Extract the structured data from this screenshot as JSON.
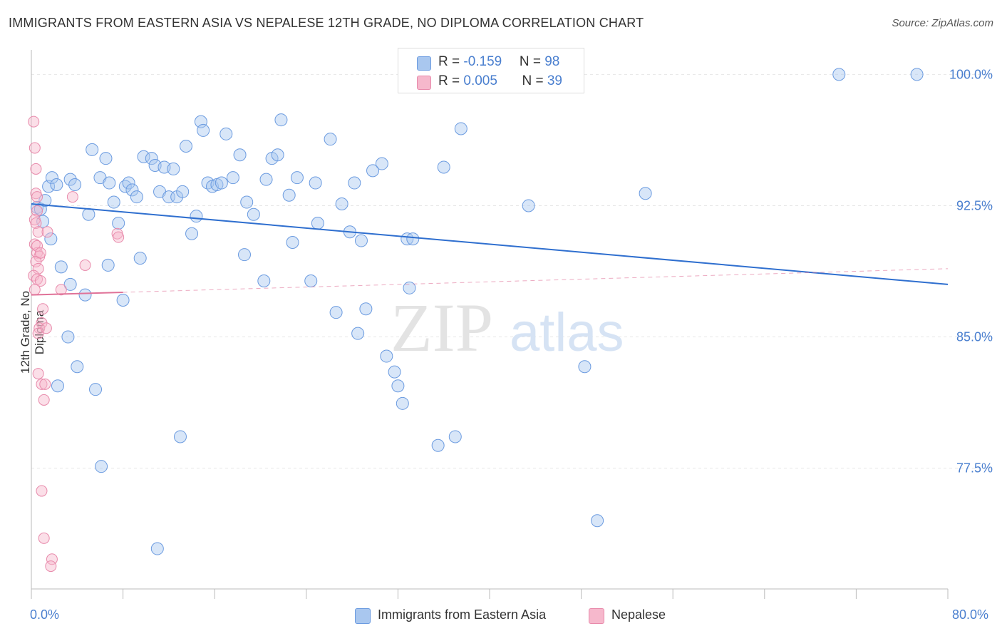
{
  "title": "IMMIGRANTS FROM EASTERN ASIA VS NEPALESE 12TH GRADE, NO DIPLOMA CORRELATION CHART",
  "source": "Source: ZipAtlas.com",
  "watermark": {
    "zip": "ZIP",
    "atlas": "atlas"
  },
  "legend": {
    "row1": {
      "r_label": "R = ",
      "r_value": "-0.159",
      "n_label": "N = ",
      "n_value": "98",
      "color": "#a9c7ef"
    },
    "row2": {
      "r_label": "R = ",
      "r_value": "0.005",
      "n_label": "N = ",
      "n_value": "39",
      "color": "#f6b8cc"
    }
  },
  "bottom_legend": {
    "series1": "Immigrants from Eastern Asia",
    "series2": "Nepalese"
  },
  "colors": {
    "blue_fill": "#a9c7ef",
    "blue_stroke": "#6b9be0",
    "blue_line": "#2f6fcf",
    "pink_fill": "#f6b8cc",
    "pink_stroke": "#e88aab",
    "pink_line": "#e07298",
    "axis_text": "#4a7fcf"
  },
  "chart_data": {
    "type": "scatter",
    "title": "IMMIGRANTS FROM EASTERN ASIA VS NEPALESE 12TH GRADE, NO DIPLOMA CORRELATION CHART",
    "xlabel": "",
    "ylabel": "12th Grade, No Diploma",
    "xlim": [
      0,
      80
    ],
    "ylim": [
      70.6,
      101.4
    ],
    "x_tick_labels": [
      "0.0%",
      "80.0%"
    ],
    "y_ticks": [
      77.5,
      85.0,
      92.5,
      100.0
    ],
    "y_tick_labels": [
      "77.5%",
      "85.0%",
      "92.5%",
      "100.0%"
    ],
    "grid": true,
    "legend_position": "top-center",
    "series": [
      {
        "name": "Immigrants from Eastern Asia",
        "r": -0.159,
        "n": 98,
        "trend": {
          "x": [
            0,
            80
          ],
          "y": [
            92.6,
            88.0
          ]
        },
        "points": [
          [
            0.5,
            92.4
          ],
          [
            0.8,
            92.3
          ],
          [
            1.0,
            91.6
          ],
          [
            1.2,
            92.8
          ],
          [
            1.5,
            93.6
          ],
          [
            1.8,
            94.1
          ],
          [
            2.2,
            93.7
          ],
          [
            3.4,
            94.0
          ],
          [
            3.8,
            93.7
          ],
          [
            5.3,
            95.7
          ],
          [
            5.0,
            92.0
          ],
          [
            6.0,
            94.1
          ],
          [
            6.5,
            95.2
          ],
          [
            6.8,
            93.8
          ],
          [
            7.2,
            92.7
          ],
          [
            7.6,
            91.5
          ],
          [
            8.2,
            93.6
          ],
          [
            8.5,
            93.8
          ],
          [
            8.8,
            93.4
          ],
          [
            9.2,
            93.0
          ],
          [
            9.5,
            89.5
          ],
          [
            9.8,
            95.3
          ],
          [
            10.5,
            95.2
          ],
          [
            10.8,
            94.8
          ],
          [
            11.2,
            93.3
          ],
          [
            11.6,
            94.7
          ],
          [
            12.0,
            93.0
          ],
          [
            12.4,
            94.6
          ],
          [
            12.7,
            93.0
          ],
          [
            13.2,
            93.3
          ],
          [
            13.5,
            95.9
          ],
          [
            14.0,
            90.9
          ],
          [
            14.4,
            91.9
          ],
          [
            14.8,
            97.3
          ],
          [
            15.0,
            96.8
          ],
          [
            15.4,
            93.8
          ],
          [
            15.8,
            93.6
          ],
          [
            16.2,
            93.7
          ],
          [
            16.6,
            93.8
          ],
          [
            17.0,
            96.6
          ],
          [
            17.6,
            94.1
          ],
          [
            18.2,
            95.4
          ],
          [
            18.6,
            89.7
          ],
          [
            18.8,
            92.7
          ],
          [
            19.4,
            92.0
          ],
          [
            20.5,
            94.0
          ],
          [
            21.0,
            95.2
          ],
          [
            21.5,
            95.4
          ],
          [
            21.8,
            97.4
          ],
          [
            22.5,
            93.1
          ],
          [
            22.8,
            90.4
          ],
          [
            23.2,
            94.1
          ],
          [
            24.4,
            88.2
          ],
          [
            24.8,
            93.8
          ],
          [
            25.0,
            91.5
          ],
          [
            26.1,
            96.3
          ],
          [
            26.6,
            86.4
          ],
          [
            27.1,
            92.6
          ],
          [
            27.8,
            91.0
          ],
          [
            28.2,
            93.8
          ],
          [
            28.5,
            85.2
          ],
          [
            28.8,
            90.5
          ],
          [
            29.2,
            86.6
          ],
          [
            29.8,
            94.5
          ],
          [
            30.6,
            94.9
          ],
          [
            31.0,
            83.9
          ],
          [
            31.7,
            83.0
          ],
          [
            32.0,
            82.2
          ],
          [
            32.4,
            81.2
          ],
          [
            32.8,
            90.6
          ],
          [
            33.0,
            87.8
          ],
          [
            33.3,
            90.6
          ],
          [
            35.5,
            78.8
          ],
          [
            36.0,
            94.7
          ],
          [
            37.0,
            79.3
          ],
          [
            37.5,
            96.9
          ],
          [
            38.5,
            100.0
          ],
          [
            42.5,
            100.0
          ],
          [
            43.4,
            92.5
          ],
          [
            48.3,
            83.3
          ],
          [
            49.4,
            74.5
          ],
          [
            53.6,
            93.2
          ],
          [
            70.5,
            100.0
          ],
          [
            77.3,
            100.0
          ],
          [
            20.3,
            88.2
          ],
          [
            13.0,
            79.3
          ],
          [
            11.0,
            72.9
          ],
          [
            6.1,
            77.6
          ],
          [
            4.0,
            83.3
          ],
          [
            3.2,
            85.0
          ],
          [
            2.3,
            82.2
          ],
          [
            5.6,
            82.0
          ],
          [
            1.7,
            90.6
          ],
          [
            2.6,
            89.0
          ],
          [
            4.7,
            87.4
          ],
          [
            6.7,
            89.1
          ],
          [
            3.4,
            88.0
          ],
          [
            8.0,
            87.1
          ]
        ]
      },
      {
        "name": "Nepalese",
        "r": 0.005,
        "n": 39,
        "trend": {
          "x": [
            0,
            80
          ],
          "y": [
            87.4,
            88.9
          ]
        },
        "points": [
          [
            0.2,
            97.3
          ],
          [
            0.3,
            95.8
          ],
          [
            0.4,
            94.6
          ],
          [
            0.4,
            93.2
          ],
          [
            0.5,
            93.0
          ],
          [
            0.5,
            92.2
          ],
          [
            0.3,
            91.7
          ],
          [
            0.4,
            91.5
          ],
          [
            0.6,
            91.0
          ],
          [
            0.3,
            90.3
          ],
          [
            0.5,
            89.8
          ],
          [
            0.7,
            89.6
          ],
          [
            0.4,
            89.3
          ],
          [
            0.6,
            88.9
          ],
          [
            0.2,
            88.5
          ],
          [
            0.5,
            88.3
          ],
          [
            0.3,
            87.7
          ],
          [
            0.8,
            88.2
          ],
          [
            1.0,
            86.6
          ],
          [
            0.9,
            85.8
          ],
          [
            0.7,
            85.5
          ],
          [
            0.6,
            85.2
          ],
          [
            1.3,
            85.5
          ],
          [
            0.6,
            82.9
          ],
          [
            0.9,
            82.3
          ],
          [
            1.2,
            82.3
          ],
          [
            1.1,
            81.4
          ],
          [
            0.9,
            76.2
          ],
          [
            1.1,
            73.5
          ],
          [
            1.8,
            72.3
          ],
          [
            1.7,
            71.9
          ],
          [
            7.5,
            90.9
          ],
          [
            7.6,
            90.7
          ],
          [
            4.7,
            89.1
          ],
          [
            3.6,
            93.0
          ],
          [
            2.6,
            87.7
          ],
          [
            0.5,
            90.2
          ],
          [
            0.8,
            89.8
          ],
          [
            1.4,
            91.0
          ]
        ]
      }
    ]
  }
}
